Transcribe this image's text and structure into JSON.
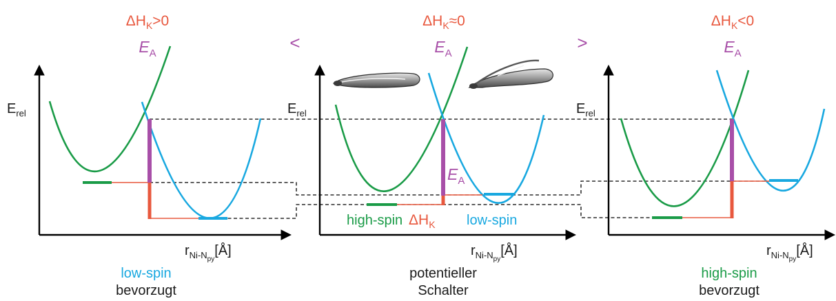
{
  "colors": {
    "high_spin": "#1a9b47",
    "low_spin": "#18a8e0",
    "activation": "#a84fa8",
    "enthalpy": "#e8583e",
    "text": "#1a1a1a"
  },
  "panels": [
    {
      "delta_main": "ΔH",
      "delta_sub": "K",
      "delta_rel": ">0",
      "ea_main": "E",
      "ea_sub": "A",
      "axis_y_main": "E",
      "axis_y_sub": "rel",
      "axis_x_main": "r",
      "axis_x_sub": "Ni-N",
      "axis_x_subsub": "py",
      "axis_x_unit": "[Å]",
      "caption_line1": "low-spin",
      "caption_line2": "bevorzugt"
    },
    {
      "delta_main": "ΔH",
      "delta_sub": "K",
      "delta_rel": "≈0",
      "ea_main": "E",
      "ea_sub": "A",
      "axis_y_main": "E",
      "axis_y_sub": "rel",
      "axis_x_main": "r",
      "axis_x_sub": "Ni-N",
      "axis_x_subsub": "py",
      "axis_x_unit": "[Å]",
      "caption_line1": "potentieller",
      "caption_line2": "Schalter",
      "label_high_spin": "high-spin",
      "label_low_spin": "low-spin",
      "inner_ea_main": "E",
      "inner_ea_sub": "A",
      "inner_dh_main": "ΔH",
      "inner_dh_sub": "K"
    },
    {
      "delta_main": "ΔH",
      "delta_sub": "K",
      "delta_rel": "<0",
      "ea_main": "E",
      "ea_sub": "A",
      "axis_y_main": "E",
      "axis_y_sub": "rel",
      "axis_x_main": "r",
      "axis_x_sub": "Ni-N",
      "axis_x_subsub": "py",
      "axis_x_unit": "[Å]",
      "caption_line1": "high-spin",
      "caption_line2": "bevorzugt"
    }
  ],
  "comparators": {
    "left": "<",
    "right": ">"
  }
}
